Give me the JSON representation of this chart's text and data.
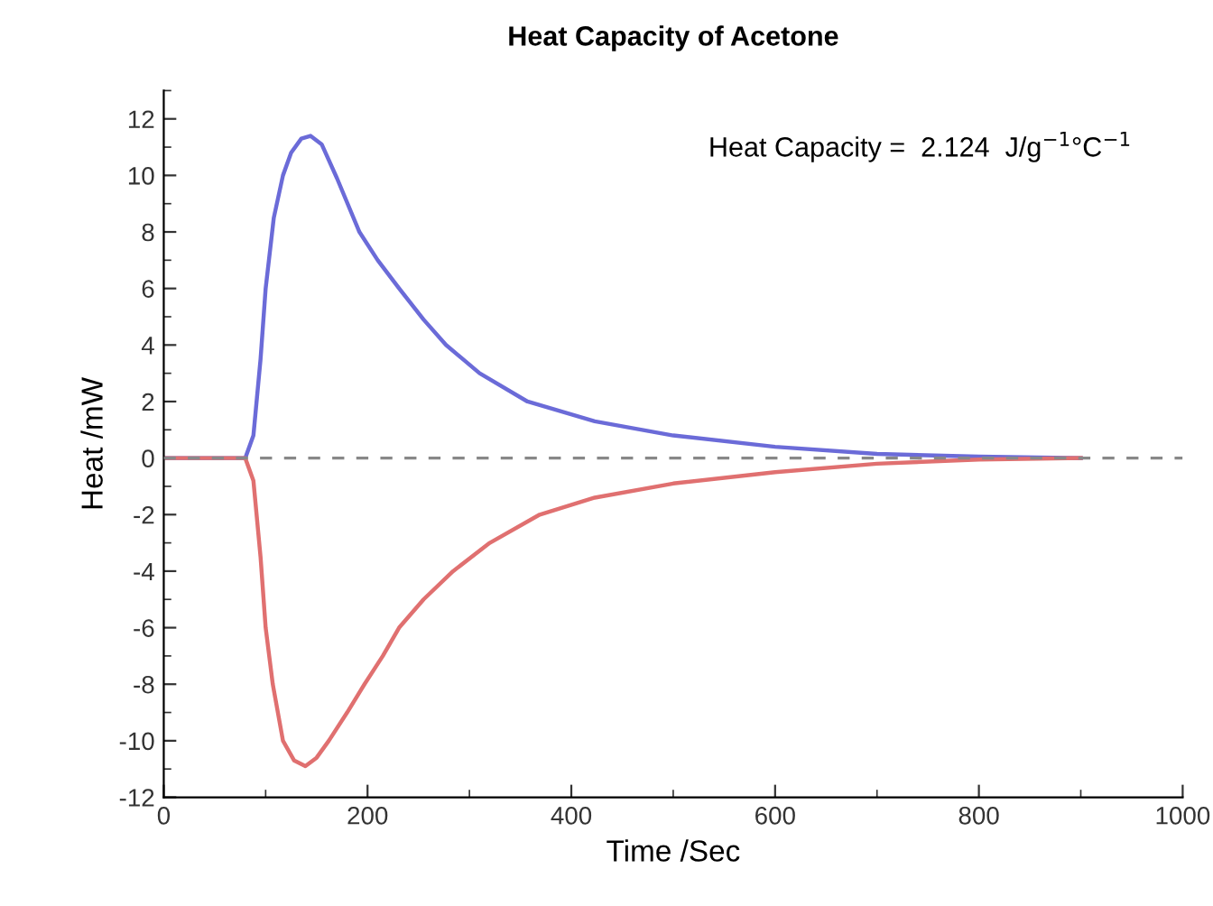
{
  "chart_data": {
    "type": "line",
    "title": "Heat Capacity of Acetone",
    "xlabel": "Time /Sec",
    "ylabel": "Heat /mW",
    "xlim": [
      0,
      1000
    ],
    "xticks": [
      0,
      200,
      400,
      600,
      800,
      1000
    ],
    "ylim": [
      -12,
      13
    ],
    "yticks": [
      -12,
      -10,
      -8,
      -6,
      -4,
      -2,
      0,
      2,
      4,
      6,
      8,
      10,
      12
    ],
    "grid": false,
    "legend": false,
    "marker": "none",
    "line_style": "solid",
    "series": [
      {
        "color": "#6b6bd8",
        "x": [
          0,
          40,
          80,
          88,
          95,
          100,
          108,
          117,
          125,
          135,
          144,
          155,
          170,
          192,
          210,
          231,
          255,
          277,
          310,
          357,
          423,
          500,
          600,
          700,
          800,
          900
        ],
        "values": [
          0,
          0,
          0,
          0.8,
          3.5,
          6,
          8.5,
          10,
          10.8,
          11.3,
          11.4,
          11.1,
          9.9,
          8,
          7,
          6,
          4.9,
          4,
          3,
          2,
          1.3,
          0.8,
          0.4,
          0.15,
          0.05,
          0
        ]
      },
      {
        "color": "#e07070",
        "x": [
          0,
          40,
          80,
          88,
          95,
          100,
          107,
          117,
          128,
          139,
          150,
          162,
          180,
          197,
          215,
          231,
          255,
          284,
          320,
          369,
          423,
          500,
          600,
          700,
          800,
          900
        ],
        "values": [
          0,
          0,
          0,
          -0.8,
          -3.5,
          -6,
          -8,
          -10,
          -10.7,
          -10.9,
          -10.6,
          -10,
          -9,
          -8,
          -7,
          -6,
          -5,
          -4,
          -3,
          -2,
          -1.4,
          -0.9,
          -0.5,
          -0.2,
          -0.05,
          0
        ]
      }
    ],
    "ref_lines": [
      {
        "axis": "y",
        "value": 0,
        "color": "#888888",
        "line_style": "dashed"
      }
    ],
    "annotations": [
      "Heat Capacity =  2.124  J/g$^{−1}$°C$^{−1}$"
    ]
  }
}
